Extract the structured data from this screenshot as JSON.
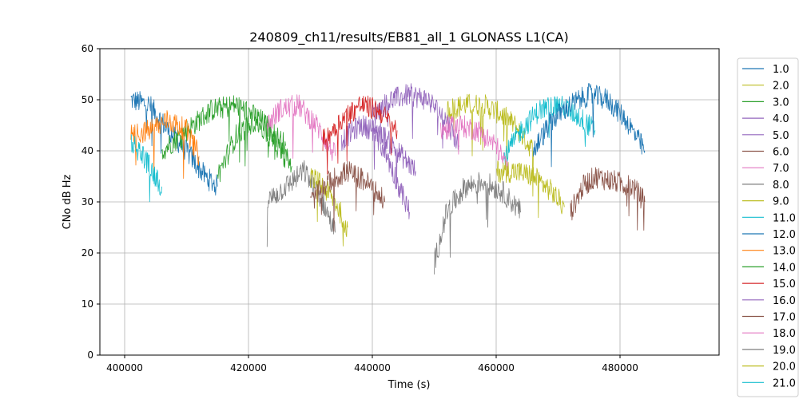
{
  "chart_data": {
    "type": "line",
    "title": "240809_ch11/results/EB81_all_1 GLONASS L1(CA)",
    "xlabel": "Time (s)",
    "ylabel": "CNo dB Hz",
    "xlim": [
      396000,
      496000
    ],
    "ylim": [
      0,
      60
    ],
    "x_ticks": [
      400000,
      420000,
      440000,
      460000,
      480000
    ],
    "y_ticks": [
      0,
      10,
      20,
      30,
      40,
      50,
      60
    ],
    "grid": true,
    "legend_position": "right (clipped at bottom)",
    "series": [
      {
        "name": "1.0",
        "color": "#1f77b4",
        "points": [
          [
            401000,
            50
          ],
          [
            404000,
            49
          ],
          [
            407000,
            44
          ],
          [
            410000,
            40
          ],
          [
            413000,
            35
          ],
          [
            415000,
            33
          ]
        ]
      },
      {
        "name": "2.0",
        "color": "#bcbd22",
        "points": [
          [
            452000,
            48
          ],
          [
            455000,
            49
          ],
          [
            458000,
            49
          ],
          [
            461000,
            47
          ],
          [
            463000,
            45
          ],
          [
            466000,
            40
          ]
        ]
      },
      {
        "name": "3.0",
        "color": "#2ca02c",
        "points": [
          [
            406000,
            40
          ],
          [
            410000,
            44
          ],
          [
            414000,
            48
          ],
          [
            418000,
            49
          ],
          [
            422000,
            46
          ],
          [
            426000,
            41
          ]
        ]
      },
      {
        "name": "4.0",
        "color": "#9467bd",
        "points": [
          [
            440000,
            47
          ],
          [
            443000,
            50
          ],
          [
            446000,
            51
          ],
          [
            449000,
            50
          ],
          [
            452000,
            46
          ],
          [
            454000,
            41
          ]
        ]
      },
      {
        "name": "5.0",
        "color": "#9467bd",
        "points": [
          [
            435000,
            42
          ],
          [
            438000,
            45
          ],
          [
            441000,
            44
          ],
          [
            444000,
            40
          ],
          [
            447000,
            36
          ]
        ]
      },
      {
        "name": "6.0",
        "color": "#8c564b",
        "points": [
          [
            472000,
            28
          ],
          [
            474000,
            33
          ],
          [
            476000,
            35
          ],
          [
            479000,
            34
          ],
          [
            482000,
            33
          ],
          [
            484000,
            30
          ]
        ]
      },
      {
        "name": "7.0",
        "color": "#e377c2",
        "points": [
          [
            423000,
            45
          ],
          [
            425000,
            48
          ],
          [
            428000,
            49
          ],
          [
            431000,
            45
          ],
          [
            434000,
            39
          ]
        ]
      },
      {
        "name": "8.0",
        "color": "#7f7f7f",
        "points": [
          [
            423000,
            30
          ],
          [
            426000,
            33
          ],
          [
            429000,
            36
          ],
          [
            432000,
            30
          ],
          [
            434000,
            24
          ]
        ]
      },
      {
        "name": "9.0",
        "color": "#bcbd22",
        "points": [
          [
            430000,
            35
          ],
          [
            432000,
            33
          ],
          [
            434000,
            30
          ],
          [
            436000,
            25
          ]
        ]
      },
      {
        "name": "11.0",
        "color": "#17becf",
        "points": [
          [
            461000,
            38
          ],
          [
            464000,
            44
          ],
          [
            467000,
            48
          ],
          [
            470000,
            49
          ],
          [
            473000,
            47
          ],
          [
            476000,
            44
          ]
        ]
      },
      {
        "name": "12.0",
        "color": "#1f77b4",
        "points": [
          [
            466000,
            40
          ],
          [
            469000,
            46
          ],
          [
            472000,
            49
          ],
          [
            475000,
            51
          ],
          [
            478000,
            50
          ],
          [
            481000,
            46
          ],
          [
            484000,
            40
          ]
        ]
      },
      {
        "name": "13.0",
        "color": "#ff7f0e",
        "points": [
          [
            401000,
            43
          ],
          [
            404000,
            44
          ],
          [
            407000,
            46
          ],
          [
            410000,
            44
          ],
          [
            412000,
            39
          ]
        ]
      },
      {
        "name": "14.0",
        "color": "#2ca02c",
        "points": [
          [
            415000,
            35
          ],
          [
            418000,
            43
          ],
          [
            421000,
            46
          ],
          [
            424000,
            42
          ],
          [
            427000,
            37
          ]
        ]
      },
      {
        "name": "15.0",
        "color": "#d62728",
        "points": [
          [
            432000,
            42
          ],
          [
            435000,
            46
          ],
          [
            438000,
            49
          ],
          [
            441000,
            48
          ],
          [
            444000,
            44
          ]
        ]
      },
      {
        "name": "16.0",
        "color": "#9467bd",
        "points": [
          [
            440000,
            44
          ],
          [
            442000,
            40
          ],
          [
            444000,
            34
          ],
          [
            446000,
            28
          ]
        ]
      },
      {
        "name": "17.0",
        "color": "#8c564b",
        "points": [
          [
            430000,
            30
          ],
          [
            433000,
            34
          ],
          [
            436000,
            36
          ],
          [
            439000,
            34
          ],
          [
            442000,
            30
          ]
        ]
      },
      {
        "name": "18.0",
        "color": "#e377c2",
        "points": [
          [
            451000,
            44
          ],
          [
            454000,
            45
          ],
          [
            457000,
            44
          ],
          [
            460000,
            41
          ],
          [
            462000,
            36
          ]
        ]
      },
      {
        "name": "19.0",
        "color": "#7f7f7f",
        "points": [
          [
            450000,
            18
          ],
          [
            452000,
            28
          ],
          [
            455000,
            33
          ],
          [
            458000,
            34
          ],
          [
            461000,
            32
          ],
          [
            464000,
            28
          ]
        ]
      },
      {
        "name": "20.0",
        "color": "#bcbd22",
        "points": [
          [
            460000,
            36
          ],
          [
            463000,
            36
          ],
          [
            466000,
            35
          ],
          [
            469000,
            32
          ],
          [
            471000,
            29
          ]
        ]
      },
      {
        "name": "21.0",
        "color": "#17becf",
        "points": [
          [
            401000,
            42
          ],
          [
            403000,
            39
          ],
          [
            405000,
            35
          ],
          [
            406000,
            33
          ]
        ]
      }
    ]
  }
}
